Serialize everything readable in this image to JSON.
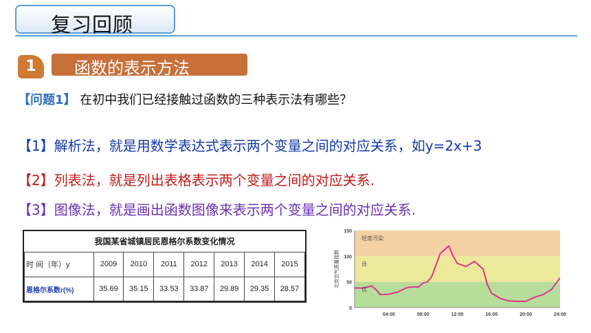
{
  "header": {
    "title": "复习回顾"
  },
  "section": {
    "number": "1",
    "title": "函数的表示方法"
  },
  "question": {
    "label": "【问题1】",
    "text": "在初中我们已经接触过函数的三种表示法有哪些？"
  },
  "points": [
    "【1】解析法，就是用数学表达式表示两个变量之间的对应关系，如y=2x+3",
    "【2】列表法，就是列出表格表示两个变量之间的对应关系.",
    "【3】图像法，就是画出函数图像来表示两个变量之间的对应关系."
  ],
  "table": {
    "caption": "我国某省城镇居民恩格尔系数变化情况",
    "row_header_1": "时 间（年）y",
    "years": [
      "2009",
      "2010",
      "2011",
      "2012",
      "2013",
      "2014",
      "2015"
    ],
    "row_header_2": "恩格尔系数r(%)",
    "values": [
      "35.69",
      "35.15",
      "33.53",
      "33.87",
      "29.89",
      "29.35",
      "28.57"
    ]
  },
  "colors": {
    "band_light": "#f3d1a4",
    "band_good": "#ede99a",
    "band_excellent": "#b7dd9a",
    "line": "#e0338f"
  },
  "chart_data": {
    "type": "line",
    "ylabel": "北京空气质量指数",
    "ylim": [
      0,
      150
    ],
    "yticks": [
      "0",
      "50",
      "100",
      "150"
    ],
    "xticks": [
      "04:00",
      "08:00",
      "12:00",
      "16:00",
      "20:00",
      "24:00"
    ],
    "xlim": [
      0,
      24
    ],
    "bands": [
      {
        "label": "优",
        "from": 0,
        "to": 50
      },
      {
        "label": "良",
        "from": 50,
        "to": 100
      },
      {
        "label": "轻度污染",
        "from": 100,
        "to": 150
      }
    ],
    "series": [
      {
        "x": [
          0,
          1,
          2,
          2.5,
          3,
          4,
          5,
          6,
          6.5,
          7.5,
          8,
          8.5,
          9,
          10,
          11,
          11.5,
          12,
          13,
          14,
          15,
          15.5,
          16,
          17,
          18,
          19,
          20,
          21,
          22,
          23,
          24
        ],
        "y": [
          38,
          38,
          42,
          35,
          25,
          26,
          30,
          38,
          40,
          40,
          48,
          50,
          60,
          105,
          120,
          100,
          86,
          80,
          90,
          75,
          45,
          28,
          18,
          13,
          12,
          12,
          20,
          25,
          35,
          58
        ]
      }
    ]
  }
}
